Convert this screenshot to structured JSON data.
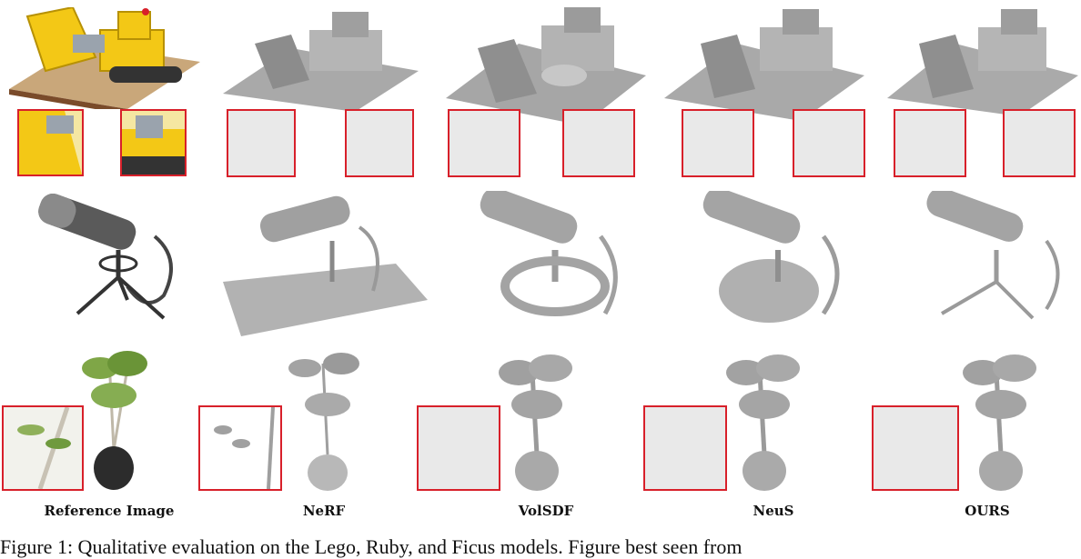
{
  "figure": {
    "columns": [
      {
        "label": "Reference Image"
      },
      {
        "label": "NeRF"
      },
      {
        "label": "VolSDF"
      },
      {
        "label": "NeuS"
      },
      {
        "label": "OURS"
      }
    ],
    "rows": [
      {
        "subject": "lego-bulldozer"
      },
      {
        "subject": "microphone"
      },
      {
        "subject": "potted-plant"
      }
    ],
    "caption": "Figure 1: Qualitative evaluation on the Lego, Ruby, and Ficus models. Figure best seen from"
  },
  "colors": {
    "inset_border": "#d8202a",
    "lego_yellow": "#f3c816",
    "mesh_gray": "#9a9a9a",
    "background": "#ffffff"
  }
}
